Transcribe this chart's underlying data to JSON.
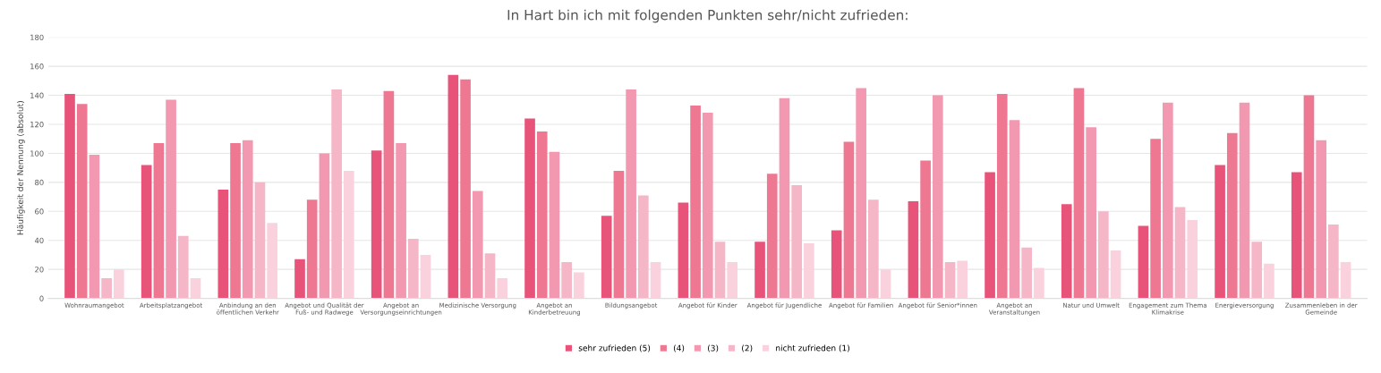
{
  "chart_data": {
    "type": "bar",
    "title": "In Hart bin ich mit folgenden Punkten sehr/nicht zufrieden:",
    "ylabel": "Häufigkeit der Nennung (absolut)",
    "categories": [
      "Wohnraumangebot",
      "Arbeitsplatzangebot",
      "Anbindung an den\nöffentlichen Verkehr",
      "Angebot und Qualität der\nFuß- und Radwege",
      "Angebot an\nVersorgungseinrichtungen",
      "Medizinische Versorgung",
      "Angebot an\nKinderbetreuung",
      "Bildungsangebot",
      "Angebot für Kinder",
      "Angebot für Jugendliche",
      "Angebot für Familien",
      "Angebot für Senior*innen",
      "Angebot an\nVeranstaltungen",
      "Natur und Umwelt",
      "Engagement zum Thema\nKlimakrise",
      "Energieversorgung",
      "Zusammenleben in der\nGemeinde"
    ],
    "series": [
      {
        "name": "sehr zufrieden (5)",
        "color": "#e8537a",
        "values": [
          141,
          92,
          75,
          27,
          102,
          154,
          124,
          57,
          66,
          39,
          47,
          67,
          87,
          65,
          50,
          92,
          87
        ]
      },
      {
        "name": "(4)",
        "color": "#ee7892",
        "values": [
          134,
          107,
          107,
          68,
          143,
          151,
          115,
          88,
          133,
          86,
          108,
          95,
          141,
          145,
          110,
          114,
          140
        ]
      },
      {
        "name": "(3)",
        "color": "#f298b0",
        "values": [
          99,
          137,
          109,
          100,
          107,
          74,
          101,
          144,
          128,
          138,
          145,
          140,
          123,
          118,
          135,
          135,
          109
        ]
      },
      {
        "name": "(2)",
        "color": "#f5b6c8",
        "values": [
          14,
          43,
          80,
          144,
          41,
          31,
          25,
          71,
          39,
          78,
          68,
          25,
          35,
          60,
          63,
          39,
          51
        ]
      },
      {
        "name": "nicht zufrieden (1)",
        "color": "#f9d2de",
        "values": [
          20,
          14,
          52,
          88,
          30,
          14,
          18,
          25,
          25,
          38,
          20,
          26,
          21,
          33,
          54,
          24,
          25
        ]
      }
    ],
    "ylim": [
      0,
      180
    ],
    "yticks": [
      0,
      20,
      40,
      60,
      80,
      100,
      120,
      140,
      160,
      180
    ],
    "grid": "y",
    "legend": "bottom"
  }
}
